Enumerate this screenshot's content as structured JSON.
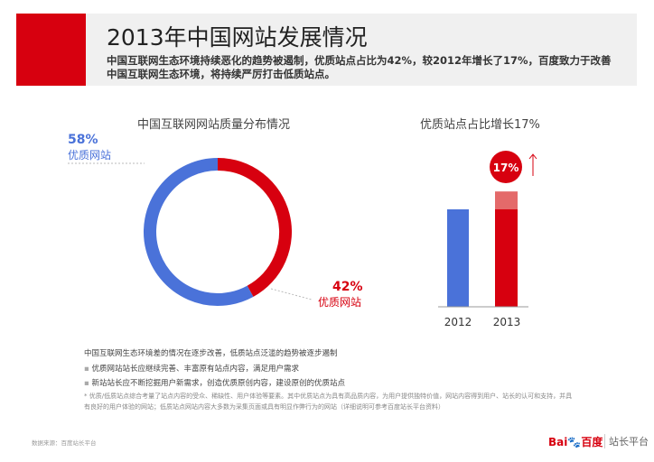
{
  "header": {
    "title": "2013年中国网站发展情况",
    "subtitle_lines": [
      "中国互联网生态环境持续恶化的趋势被遏制，优质站点占比为42%，较2012年增长了17%，百度致力于改善",
      "中国互联网生态环境，将持续严厉打击低质站点。"
    ]
  },
  "chart_data": [
    {
      "type": "pie",
      "title": "中国互联网网站质量分布情况",
      "slices": [
        {
          "label": "优质网站",
          "value": 58,
          "display": "58%",
          "color": "#4a72d9"
        },
        {
          "label": "优质网站",
          "value": 42,
          "display": "42%",
          "color": "#d7000f"
        }
      ]
    },
    {
      "type": "bar",
      "title": "优质站点占比增长17%",
      "categories": [
        "2012",
        "2013"
      ],
      "values": [
        25,
        42
      ],
      "increase_segment": 17,
      "increase_label": "17%",
      "colors": {
        "2012": "#4a72d9",
        "2013": "#d7000f",
        "increase": "#e46a6a"
      }
    }
  ],
  "notes": {
    "headline": "中国互联网生态环境差的情况在逐步改善，低质站点泛滥的趋势被逐步遏制",
    "bullets": [
      "优质网站站长应继续完善、丰富原有站点内容，满足用户需求",
      "新站站长应不断挖掘用户新需求，创造优质原创内容，建设原创的优质站点"
    ],
    "footnote_lines": [
      "* 优质/低质站点综合考量了站点内容的受众、稀缺性、用户体验等要素。其中优质站点为具有高品质内容，为用户提供独特价值，网站内容得到用户、站长的认可和支持，并具",
      "有良好的用户体验的网站；低质站点网站内容大多数为采集页面或具有明显作弊行为的网站（详细说明可参考百度站长平台资料）"
    ]
  },
  "footer": {
    "source": "数据来源：百度站长平台",
    "logo": "Bai百度",
    "platform": "站长平台"
  }
}
